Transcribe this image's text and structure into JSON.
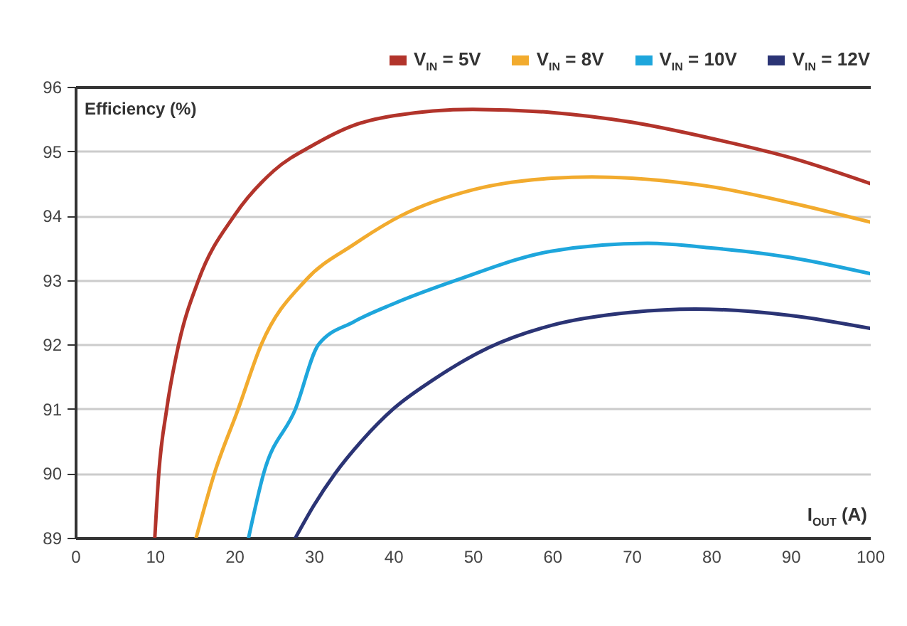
{
  "chart_data": {
    "type": "line",
    "xlabel": "I$_{OUT}$ (A)",
    "ylabel": "Efficiency (%)",
    "xlim": [
      0,
      100
    ],
    "xticks": [
      0,
      10,
      20,
      30,
      40,
      50,
      60,
      70,
      80,
      90,
      100
    ],
    "ylim": [
      89,
      96
    ],
    "yticks": [
      89,
      90,
      91,
      92,
      93,
      94,
      95,
      96
    ],
    "grid": "y",
    "legend": "top right",
    "line_style": "solid",
    "marker": "none",
    "series": [
      {
        "name": "V$_{IN}$ = 5V",
        "color": "#b2342b",
        "x": [
          10,
          10.5,
          11.5,
          13,
          15.5,
          20,
          25,
          30,
          35,
          40,
          50,
          60,
          70,
          80,
          90,
          100
        ],
        "values": [
          89,
          90,
          91,
          92,
          93,
          94,
          94.7,
          95.1,
          95.4,
          95.55,
          95.65,
          95.6,
          95.45,
          95.2,
          94.9,
          94.5
        ]
      },
      {
        "name": "V$_{IN}$ = 8V",
        "color": "#f2ab2e",
        "x": [
          15.2,
          17.5,
          20.5,
          23.4,
          29,
          35,
          41,
          50,
          60,
          65,
          70,
          80,
          90,
          100
        ],
        "values": [
          89,
          90,
          91,
          92,
          93,
          93.55,
          94.0,
          94.4,
          94.58,
          94.6,
          94.58,
          94.45,
          94.2,
          93.9
        ]
      },
      {
        "name": "V$_{IN}$ = 10V",
        "color": "#1ea6dc",
        "x": [
          21.8,
          23.7,
          27.7,
          30.6,
          35,
          40,
          48,
          60,
          72,
          80,
          90,
          100
        ],
        "values": [
          89,
          90,
          91,
          92,
          92.35,
          92.63,
          93.0,
          93.45,
          93.57,
          93.5,
          93.35,
          93.1
        ]
      },
      {
        "name": "V$_{IN}$ = 12V",
        "color": "#2b3475",
        "x": [
          27.7,
          30,
          32.7,
          36,
          40,
          45,
          52,
          60,
          70,
          78,
          90,
          100
        ],
        "values": [
          89,
          89.5,
          90,
          90.5,
          91,
          91.45,
          91.95,
          92.3,
          92.5,
          92.55,
          92.45,
          92.25
        ]
      }
    ]
  }
}
